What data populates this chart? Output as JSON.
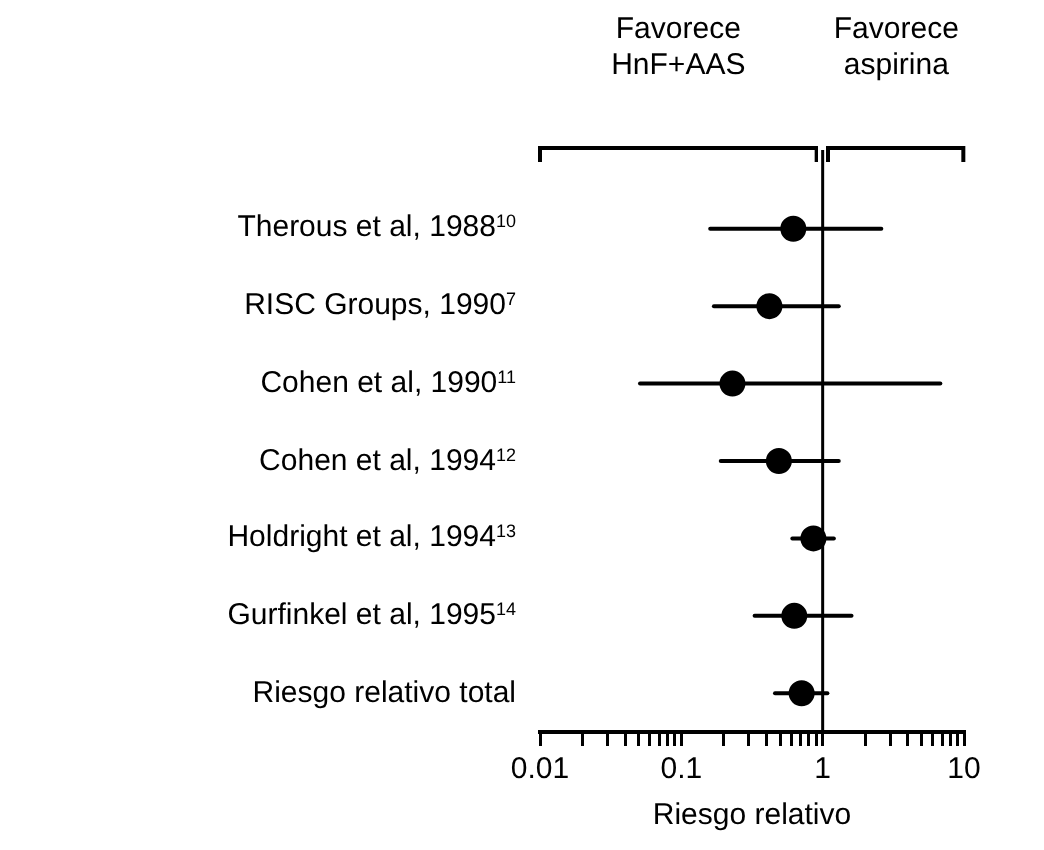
{
  "chart_data": {
    "type": "scatter",
    "orientation": "horizontal",
    "categories": [
      "Therous et al, 1988$^{10}$",
      "RISC Groups, 1990$^{7}$",
      "Cohen et al, 1990$^{11}$",
      "Cohen et al, 1994$^{12}$",
      "Holdright et al, 1994$^{13}$",
      "Gurfinkel et al, 1995$^{14}$",
      "Riesgo relativo total"
    ],
    "series": [
      {
        "color": "#000000",
        "values": [
          0.62,
          0.42,
          0.23,
          0.49,
          0.86,
          0.63,
          0.71
        ],
        "errors": [
          [
            0.16,
            2.6
          ],
          [
            0.17,
            1.3
          ],
          [
            0.051,
            6.8
          ],
          [
            0.19,
            1.3
          ],
          [
            0.61,
            1.2
          ],
          [
            0.33,
            1.6
          ],
          [
            0.46,
            1.08
          ]
        ]
      }
    ],
    "log": "x",
    "xlim": [
      0.01,
      10
    ],
    "xticks": [
      0.01,
      {
        "value": 0.02,
        "label": null
      },
      {
        "value": 0.03,
        "label": null
      },
      {
        "value": 0.04,
        "label": null
      },
      {
        "value": 0.05,
        "label": null
      },
      {
        "value": 0.06,
        "label": null
      },
      {
        "value": 0.07,
        "label": null
      },
      {
        "value": 0.08,
        "label": null
      },
      {
        "value": 0.09,
        "label": null
      },
      0.1,
      {
        "value": 0.2,
        "label": null
      },
      {
        "value": 0.3,
        "label": null
      },
      {
        "value": 0.4,
        "label": null
      },
      {
        "value": 0.5,
        "label": null
      },
      {
        "value": 0.6,
        "label": null
      },
      {
        "value": 0.7,
        "label": null
      },
      {
        "value": 0.8,
        "label": null
      },
      {
        "value": 0.9,
        "label": null
      },
      1,
      {
        "value": 2,
        "label": null
      },
      {
        "value": 3,
        "label": null
      },
      {
        "value": 4,
        "label": null
      },
      {
        "value": 5,
        "label": null
      },
      {
        "value": 6,
        "label": null
      },
      {
        "value": 7,
        "label": null
      },
      {
        "value": 8,
        "label": null
      },
      {
        "value": 9,
        "label": null
      },
      10
    ],
    "xlabel": "Riesgo relativo",
    "ref_lines": [
      {
        "axis": "x",
        "value": 1
      }
    ],
    "annotations": [
      "Favorece HnF+AAS",
      "Favorece aspirina"
    ],
    "grid": false,
    "legend": false,
    "marker": "circle",
    "tick_labels": "x"
  }
}
